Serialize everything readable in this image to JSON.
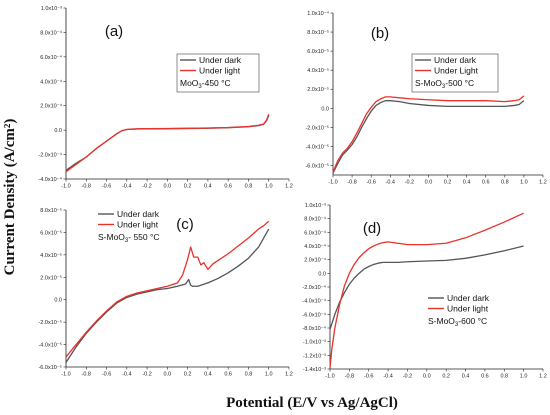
{
  "figure": {
    "ylabel": "Current Density (A/cm²)",
    "xlabel": "Potential (E/V vs Ag/AgCl)"
  },
  "colors": {
    "dark": "#555555",
    "light": "#e8322c",
    "axis": "#222222"
  },
  "chart_data": [
    {
      "type": "line",
      "tag": "(a)",
      "legend_location": "upper-right",
      "legend_note": "MoO3-450 °C",
      "legend_note_parts": [
        "MoO",
        "3",
        "-450 °C"
      ],
      "xlim": [
        -1.0,
        1.2
      ],
      "ylim": [
        -0.0004,
        0.001
      ],
      "xticks": [
        -1.0,
        -0.8,
        -0.6,
        -0.4,
        -0.2,
        0.0,
        0.2,
        0.4,
        0.6,
        0.8,
        1.0,
        1.2
      ],
      "xticklabels": [
        "-1.0",
        "-0.8",
        "-0.6",
        "-0.4",
        "-0.2",
        "0.0",
        "0.2",
        "0.4",
        "0.6",
        "0.8",
        "1.0",
        "1.2"
      ],
      "yticks": [
        -0.0004,
        -0.0002,
        0,
        0.0002,
        0.0004,
        0.0006,
        0.0008,
        0.001
      ],
      "yticklabels": [
        "-4.0x10⁻⁴",
        "-2.0x10⁻⁴",
        "0.0",
        "2.0x10⁻⁴",
        "4.0x10⁻⁴",
        "6.0x10⁻⁴",
        "8.0x10⁻⁴",
        "1.0x10⁻³"
      ],
      "series": [
        {
          "name": "Under dark",
          "color": "#555555",
          "x": [
            -1.0,
            -0.9,
            -0.8,
            -0.7,
            -0.6,
            -0.5,
            -0.45,
            -0.4,
            -0.3,
            -0.2,
            0.0,
            0.2,
            0.4,
            0.6,
            0.8,
            0.9,
            0.95,
            0.98,
            1.0
          ],
          "y": [
            -0.00033,
            -0.00027,
            -0.00022,
            -0.00015,
            -9e-05,
            -3e-05,
            -5e-06,
            5e-06,
            1e-05,
            1.1e-05,
            1.2e-05,
            1.4e-05,
            1.6e-05,
            2e-05,
            2.8e-05,
            3.7e-05,
            4.8e-05,
            8e-05,
            0.00012
          ]
        },
        {
          "name": "Under light",
          "color": "#e8322c",
          "x": [
            -1.0,
            -0.9,
            -0.8,
            -0.7,
            -0.6,
            -0.5,
            -0.45,
            -0.4,
            -0.3,
            -0.2,
            0.0,
            0.2,
            0.4,
            0.6,
            0.8,
            0.9,
            0.95,
            0.98,
            1.0
          ],
          "y": [
            -0.00034,
            -0.00028,
            -0.00022,
            -0.00015,
            -9e-05,
            -3e-05,
            -5e-06,
            6e-06,
            1.1e-05,
            1.2e-05,
            1.3e-05,
            1.5e-05,
            1.7e-05,
            2.1e-05,
            3e-05,
            4e-05,
            5e-05,
            8.5e-05,
            0.00013
          ]
        }
      ]
    },
    {
      "type": "line",
      "tag": "(b)",
      "legend_location": "upper-right",
      "legend_note": "S-MoO3-500 °C",
      "legend_note_parts": [
        "S-MoO",
        "3",
        "-500 °C"
      ],
      "xlim": [
        -1.0,
        1.2
      ],
      "ylim": [
        -7e-05,
        0.0001
      ],
      "xticks": [
        -1.0,
        -0.8,
        -0.6,
        -0.4,
        -0.2,
        0.0,
        0.2,
        0.4,
        0.6,
        0.8,
        1.0,
        1.2
      ],
      "xticklabels": [
        "-1.0",
        "-0.8",
        "-0.6",
        "-0.4",
        "-0.2",
        "0.0",
        "0.2",
        "0.4",
        "0.6",
        "0.8",
        "1.0",
        "1.2"
      ],
      "yticks": [
        -6e-05,
        -4e-05,
        -2e-05,
        0,
        2e-05,
        4e-05,
        6e-05,
        8e-05,
        0.0001
      ],
      "yticklabels": [
        "-6.0x10⁻⁵",
        "-4.0x10⁻⁵",
        "-2.0x10⁻⁵",
        "0.0",
        "2.0x10⁻⁵",
        "4.0x10⁻⁵",
        "6.0x10⁻⁵",
        "8.0x10⁻⁵",
        "1.0x10⁻⁴"
      ],
      "series": [
        {
          "name": "Under dark",
          "color": "#555555",
          "x": [
            -1.0,
            -0.95,
            -0.9,
            -0.85,
            -0.8,
            -0.75,
            -0.7,
            -0.65,
            -0.6,
            -0.55,
            -0.5,
            -0.45,
            -0.4,
            -0.3,
            -0.2,
            0.0,
            0.2,
            0.4,
            0.6,
            0.8,
            0.9,
            0.95,
            1.0
          ],
          "y": [
            -6.8e-05,
            -5.8e-05,
            -4.9e-05,
            -4.4e-05,
            -3.8e-05,
            -3e-05,
            -2e-05,
            -1.1e-05,
            -3e-06,
            3e-06,
            6e-06,
            8e-06,
            8e-06,
            7e-06,
            5e-06,
            3e-06,
            2e-06,
            2e-06,
            2e-06,
            2e-06,
            3e-06,
            4e-06,
            8e-06
          ]
        },
        {
          "name": "Under Light",
          "color": "#e8322c",
          "x": [
            -1.0,
            -0.95,
            -0.9,
            -0.85,
            -0.8,
            -0.75,
            -0.7,
            -0.65,
            -0.6,
            -0.55,
            -0.5,
            -0.45,
            -0.4,
            -0.3,
            -0.2,
            0.0,
            0.2,
            0.4,
            0.6,
            0.8,
            0.9,
            0.95,
            1.0
          ],
          "y": [
            -6.7e-05,
            -5.5e-05,
            -4.7e-05,
            -4.2e-05,
            -3.5e-05,
            -2.6e-05,
            -1.6e-05,
            -6e-06,
            1e-06,
            7e-06,
            1e-05,
            1.2e-05,
            1.2e-05,
            1.1e-05,
            1e-05,
            9e-06,
            8e-06,
            8e-06,
            8e-06,
            7e-06,
            8e-06,
            9e-06,
            1.3e-05
          ]
        }
      ]
    },
    {
      "type": "line",
      "tag": "(c)",
      "legend_location": "upper-left",
      "legend_note": "S-MoO3- 550 °C",
      "legend_note_parts": [
        "S-MoO",
        "3",
        "- 550 °C"
      ],
      "xlim": [
        -1.0,
        1.2
      ],
      "ylim": [
        -6e-05,
        8e-05
      ],
      "xticks": [
        -1.0,
        -0.8,
        -0.6,
        -0.4,
        -0.2,
        0.0,
        0.2,
        0.4,
        0.6,
        0.8,
        1.0,
        1.2
      ],
      "xticklabels": [
        "-1.0",
        "-0.8",
        "-0.6",
        "-0.4",
        "-0.2",
        "0.0",
        "0.2",
        "0.4",
        "0.6",
        "0.8",
        "1.0",
        "1.2"
      ],
      "yticks": [
        -6e-05,
        -4e-05,
        -2e-05,
        0,
        2e-05,
        4e-05,
        6e-05,
        8e-05
      ],
      "yticklabels": [
        "-6.0x10⁻⁵",
        "-4.0x10⁻⁵",
        "-2.0x10⁻⁵",
        "0.0",
        "2.0x10⁻⁵",
        "4.0x10⁻⁵",
        "6.0x10⁻⁵",
        "8.0x10⁻⁵"
      ],
      "series": [
        {
          "name": "Under dark",
          "color": "#555555",
          "x": [
            -1.0,
            -0.9,
            -0.8,
            -0.7,
            -0.6,
            -0.5,
            -0.4,
            -0.3,
            -0.2,
            -0.1,
            0.0,
            0.1,
            0.18,
            0.21,
            0.23,
            0.25,
            0.3,
            0.4,
            0.5,
            0.6,
            0.7,
            0.8,
            0.9,
            1.0
          ],
          "y": [
            -5.6e-05,
            -4.2e-05,
            -3e-05,
            -2e-05,
            -1.1e-05,
            -3e-06,
            2e-06,
            5e-06,
            7e-06,
            9e-06,
            1e-05,
            1.2e-05,
            1.4e-05,
            1.8e-05,
            1.3e-05,
            1.2e-05,
            1.2e-05,
            1.5e-05,
            1.9e-05,
            2.4e-05,
            3e-05,
            3.7e-05,
            4.7e-05,
            6.3e-05
          ]
        },
        {
          "name": "Under light",
          "color": "#e8322c",
          "x": [
            -1.0,
            -0.9,
            -0.8,
            -0.7,
            -0.6,
            -0.5,
            -0.4,
            -0.3,
            -0.2,
            -0.1,
            0.0,
            0.1,
            0.15,
            0.2,
            0.23,
            0.26,
            0.3,
            0.33,
            0.36,
            0.4,
            0.45,
            0.5,
            0.6,
            0.7,
            0.8,
            0.9,
            0.95,
            1.0
          ],
          "y": [
            -5.1e-05,
            -4e-05,
            -2.9e-05,
            -1.9e-05,
            -1e-05,
            -2e-06,
            3e-06,
            6e-06,
            8e-06,
            1e-05,
            1.2e-05,
            1.5e-05,
            2.2e-05,
            3.6e-05,
            4.7e-05,
            3.8e-05,
            3.8e-05,
            3.1e-05,
            3.3e-05,
            2.7e-05,
            3.2e-05,
            3.5e-05,
            4.1e-05,
            4.8e-05,
            5.5e-05,
            6.3e-05,
            6.6e-05,
            7e-05
          ]
        }
      ]
    },
    {
      "type": "line",
      "tag": "(d)",
      "legend_location": "lower-right",
      "legend_note": "S-MoO3-600 °C",
      "legend_note_parts": [
        "S-MoO",
        "3",
        "-600 °C"
      ],
      "xlim": [
        -1.0,
        1.2
      ],
      "ylim": [
        -0.0014,
        0.001
      ],
      "xticks": [
        -1.0,
        -0.8,
        -0.6,
        -0.4,
        -0.2,
        0.0,
        0.2,
        0.4,
        0.6,
        0.8,
        1.0,
        1.2
      ],
      "xticklabels": [
        "-1.0",
        "-0.8",
        "-0.6",
        "-0.4",
        "-0.2",
        "0.0",
        "0.2",
        "0.4",
        "0.6",
        "0.8",
        "1.0",
        "1.2"
      ],
      "yticks": [
        -0.0014,
        -0.0012,
        -0.001,
        -0.0008,
        -0.0006,
        -0.0004,
        -0.0002,
        0,
        0.0002,
        0.0004,
        0.0006,
        0.0008,
        0.001
      ],
      "yticklabels": [
        "-1.4x10⁻³",
        "-1.2x10⁻³",
        "-1.0x10⁻³",
        "-8.0x10⁻⁴",
        "-6.0x10⁻⁴",
        "-4.0x10⁻⁴",
        "-2.0x10⁻⁴",
        "0.0",
        "2.0x10⁻⁴",
        "4.0x10⁻⁴",
        "6.0x10⁻⁴",
        "8.0x10⁻⁴",
        "1.0x10⁻³"
      ],
      "series": [
        {
          "name": "Under dark",
          "color": "#555555",
          "x": [
            -1.0,
            -0.95,
            -0.9,
            -0.85,
            -0.8,
            -0.75,
            -0.7,
            -0.65,
            -0.6,
            -0.55,
            -0.5,
            -0.45,
            -0.4,
            -0.3,
            -0.2,
            0.0,
            0.2,
            0.4,
            0.6,
            0.8,
            1.0
          ],
          "y": [
            -0.00082,
            -0.0006,
            -0.00042,
            -0.00028,
            -0.00016,
            -7e-05,
            0.0,
            6e-05,
            0.0001,
            0.00013,
            0.00015,
            0.00016,
            0.00016,
            0.00016,
            0.00017,
            0.00018,
            0.00019,
            0.00022,
            0.00027,
            0.00033,
            0.0004
          ]
        },
        {
          "name": "Under light",
          "color": "#e8322c",
          "x": [
            -1.0,
            -0.98,
            -0.95,
            -0.9,
            -0.85,
            -0.8,
            -0.75,
            -0.7,
            -0.65,
            -0.6,
            -0.55,
            -0.5,
            -0.45,
            -0.4,
            -0.3,
            -0.2,
            0.0,
            0.2,
            0.4,
            0.6,
            0.8,
            1.0
          ],
          "y": [
            -0.00138,
            -0.0011,
            -0.0008,
            -0.00045,
            -0.00018,
            0.0,
            0.00013,
            0.00023,
            0.0003,
            0.00036,
            0.0004,
            0.00043,
            0.00045,
            0.00046,
            0.00044,
            0.00042,
            0.00042,
            0.00044,
            0.00052,
            0.00063,
            0.00075,
            0.00088
          ]
        }
      ]
    }
  ]
}
